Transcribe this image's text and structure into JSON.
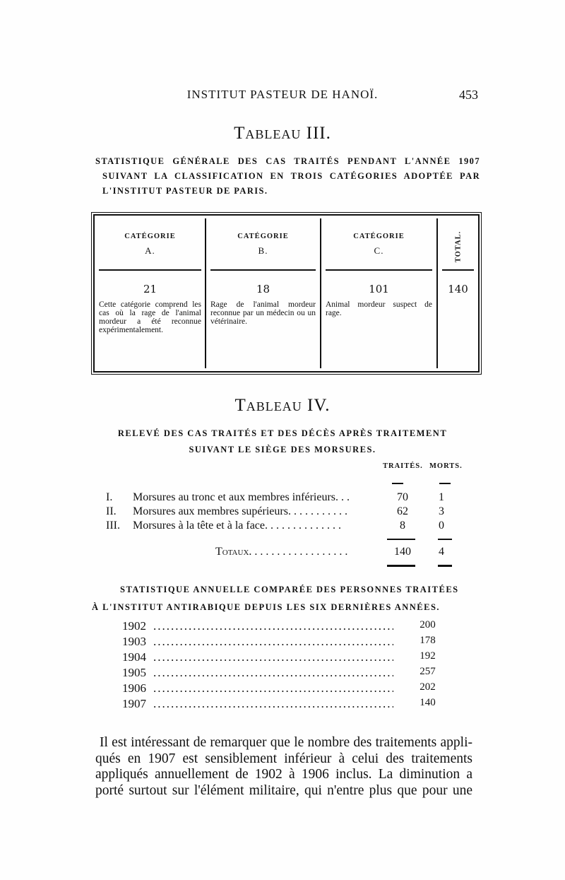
{
  "header": {
    "running_title": "INSTITUT PASTEUR DE HANOÏ.",
    "page_number": "453"
  },
  "tableau3": {
    "title": "Tableau III.",
    "caption_lines": [
      "STATISTIQUE GÉNÉRALE DES CAS TRAITÉS PENDANT L'ANNÉE 1907",
      "SUIVANT LA CLASSIFICATION EN TROIS CATÉGORIES ADOPTÉE PAR",
      "L'INSTITUT PASTEUR DE PARIS."
    ],
    "columns": [
      {
        "head": "CATÉGORIE",
        "sub": "A.",
        "value": "21",
        "desc": "Cette catégorie comprend les cas où la rage de l'animal mordeur a été reconnue expérimentalement."
      },
      {
        "head": "CATÉGORIE",
        "sub": "B.",
        "value": "18",
        "desc": "Rage de l'animal mordeur reconnue par un médecin ou un vétérinaire."
      },
      {
        "head": "CATÉGORIE",
        "sub": "C.",
        "value": "101",
        "desc": "Animal mordeur suspect de rage."
      }
    ],
    "total": {
      "head": "TOTAL.",
      "value": "140"
    }
  },
  "tableau4": {
    "title": "Tableau IV.",
    "caption_lines": [
      "RELEVÉ DES CAS TRAITÉS ET DES DÉCÈS APRÈS TRAITEMENT",
      "SUIVANT LE SIÈGE DES MORSURES."
    ],
    "col_traites": "TRAITÉS.",
    "col_morts": "MORTS.",
    "rows": [
      {
        "num": "I.",
        "label": "Morsures au tronc et aux membres inférieurs. . .",
        "traites": "70",
        "morts": "1"
      },
      {
        "num": "II.",
        "label": "Morsures aux membres supérieurs. . . . . . . . . . .",
        "traites": "62",
        "morts": "3"
      },
      {
        "num": "III.",
        "label": "Morsures à la tête et à la face. . . . . . . . . . . . . .",
        "traites": "8",
        "morts": "0"
      }
    ],
    "totals": {
      "label": "Totaux. . . . . . . . . . . . . . . . . .",
      "traites": "140",
      "morts": "4"
    }
  },
  "annual": {
    "caption_lines": [
      "STATISTIQUE ANNUELLE COMPARÉE DES PERSONNES TRAITÉES",
      "À L'INSTITUT ANTIRABIQUE DEPUIS LES SIX DERNIÈRES ANNÉES."
    ],
    "rows": [
      {
        "year": "1902",
        "value": "200"
      },
      {
        "year": "1903",
        "value": "178"
      },
      {
        "year": "1904",
        "value": "192"
      },
      {
        "year": "1905",
        "value": "257"
      },
      {
        "year": "1906",
        "value": "202"
      },
      {
        "year": "1907",
        "value": "140"
      }
    ]
  },
  "body_lines": [
    "Il est intéressant de remarquer que le nombre des traitements appli-",
    "qués en 1907 est sensiblement inférieur à celui des traitements",
    "appliqués annuellement de 1902 à 1906 inclus. La diminution a",
    "porté surtout sur l'élément militaire, qui n'entre plus que pour une"
  ]
}
